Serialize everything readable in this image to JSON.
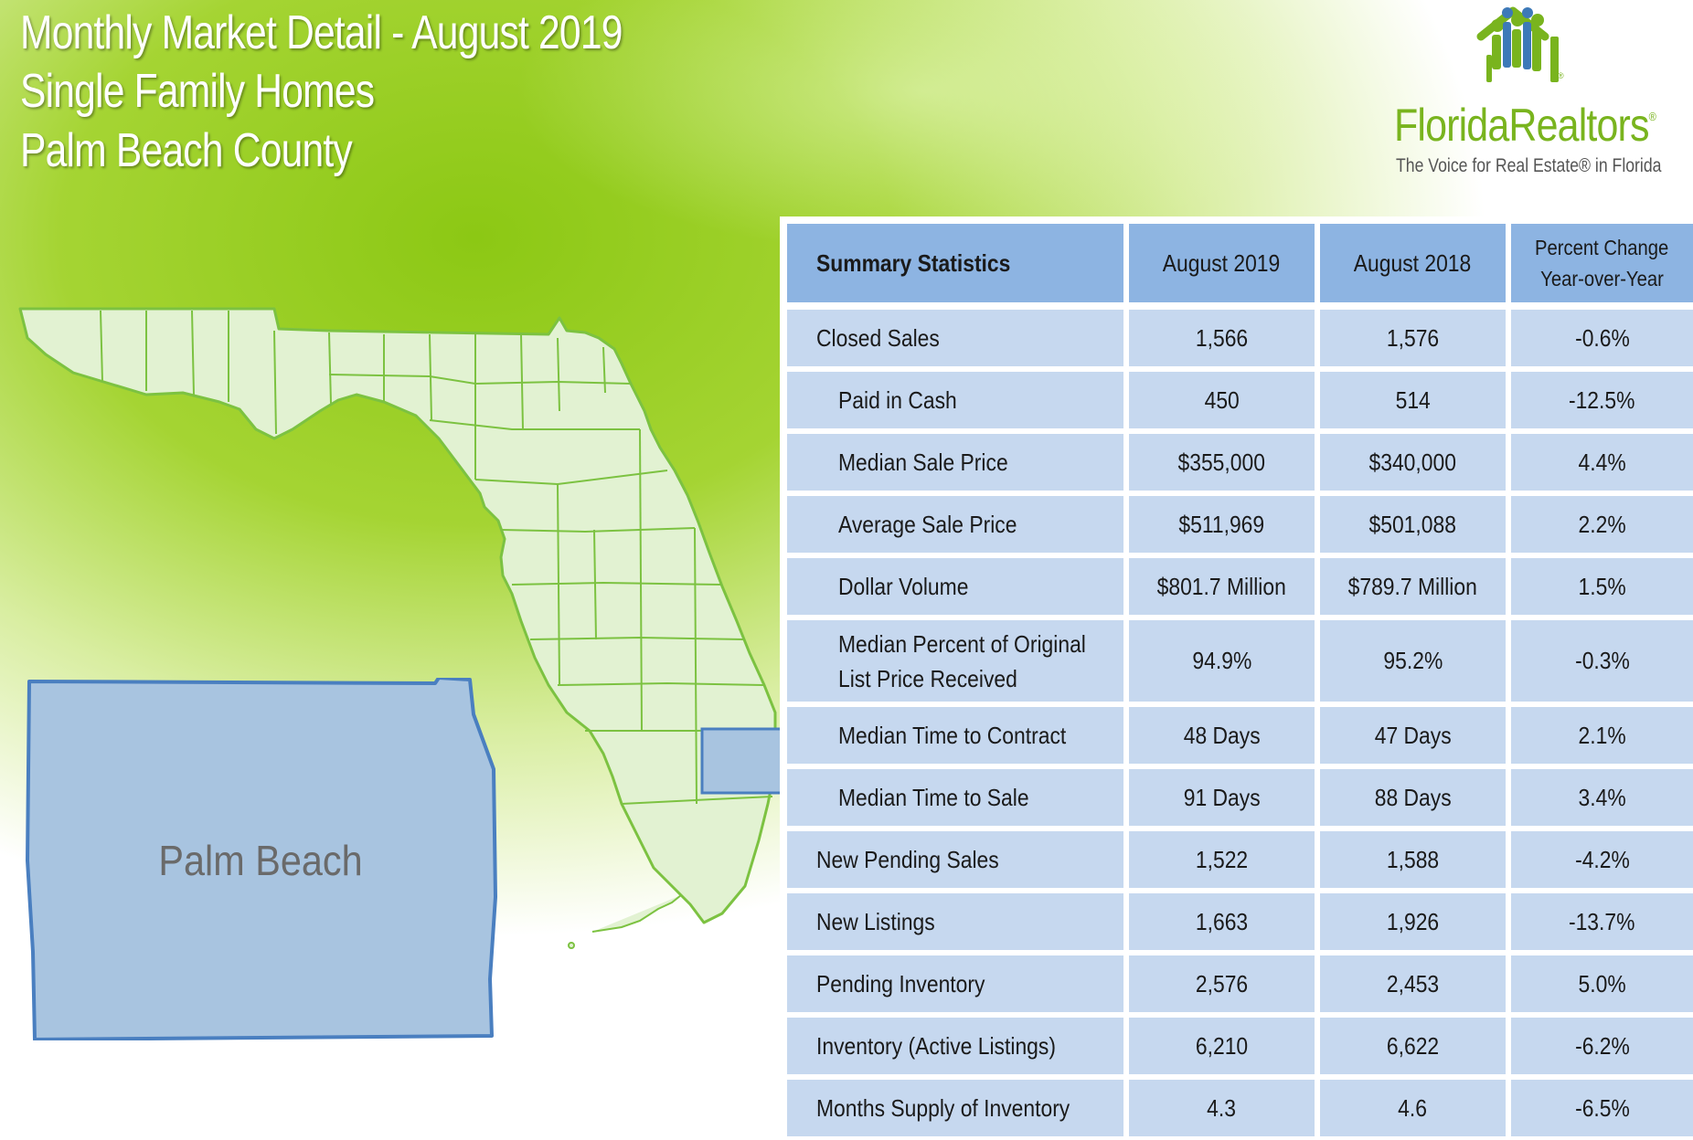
{
  "title": {
    "line1": "Monthly Market Detail - August 2019",
    "line2": "Single Family Homes",
    "line3": "Palm Beach County"
  },
  "logo": {
    "name": "FloridaRealtors",
    "tagline": "The Voice for Real Estate® in Florida"
  },
  "map": {
    "county_label": "Palm Beach",
    "highlight_color": "#a8c4e0",
    "state_fill": "#e2f2d2",
    "border_color": "#7cc241"
  },
  "table": {
    "headers": [
      "Summary Statistics",
      "August 2019",
      "August 2018",
      "Percent Change Year-over-Year"
    ],
    "header_pct_line1": "Percent Change",
    "header_pct_line2": "Year-over-Year",
    "rows": [
      {
        "label": "Closed Sales",
        "indent": false,
        "v2019": "1,566",
        "v2018": "1,576",
        "pct": "-0.6%"
      },
      {
        "label": "Paid in Cash",
        "indent": true,
        "v2019": "450",
        "v2018": "514",
        "pct": "-12.5%"
      },
      {
        "label": "Median Sale Price",
        "indent": true,
        "v2019": "$355,000",
        "v2018": "$340,000",
        "pct": "4.4%"
      },
      {
        "label": "Average Sale Price",
        "indent": true,
        "v2019": "$511,969",
        "v2018": "$501,088",
        "pct": "2.2%"
      },
      {
        "label": "Dollar Volume",
        "indent": true,
        "v2019": "$801.7 Million",
        "v2018": "$789.7 Million",
        "pct": "1.5%"
      },
      {
        "label": "Median Percent of Original",
        "label2": "List Price Received",
        "indent": true,
        "v2019": "94.9%",
        "v2018": "95.2%",
        "pct": "-0.3%"
      },
      {
        "label": "Median Time to Contract",
        "indent": true,
        "v2019": "48 Days",
        "v2018": "47 Days",
        "pct": "2.1%"
      },
      {
        "label": "Median Time to Sale",
        "indent": true,
        "v2019": "91 Days",
        "v2018": "88 Days",
        "pct": "3.4%"
      },
      {
        "label": "New Pending Sales",
        "indent": false,
        "v2019": "1,522",
        "v2018": "1,588",
        "pct": "-4.2%"
      },
      {
        "label": "New Listings",
        "indent": false,
        "v2019": "1,663",
        "v2018": "1,926",
        "pct": "-13.7%"
      },
      {
        "label": "Pending Inventory",
        "indent": false,
        "v2019": "2,576",
        "v2018": "2,453",
        "pct": "5.0%"
      },
      {
        "label": "Inventory (Active Listings)",
        "indent": false,
        "v2019": "6,210",
        "v2018": "6,622",
        "pct": "-6.2%"
      },
      {
        "label": "Months Supply of Inventory",
        "indent": false,
        "v2019": "4.3",
        "v2018": "4.6",
        "pct": "-6.5%"
      }
    ]
  }
}
